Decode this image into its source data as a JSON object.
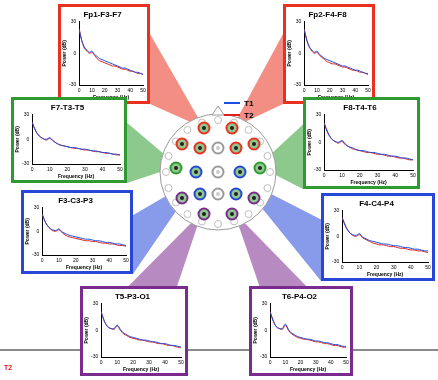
{
  "chart_data": [
    {
      "type": "line",
      "title": "Fp1-F3-F7",
      "x_label": "Frequency (Hz)",
      "y_label": "Power (dB)",
      "x": [
        0,
        2,
        4,
        6,
        8,
        10,
        12,
        14,
        16,
        18,
        20,
        22,
        24,
        26,
        28,
        30,
        32,
        34,
        36,
        38,
        40,
        42,
        44,
        46,
        48,
        50
      ],
      "xlim": [
        0,
        50
      ],
      "xticks": [
        0,
        10,
        20,
        30,
        40,
        50
      ],
      "ylim": [
        -30,
        30
      ],
      "yticks": [
        -30,
        0,
        30
      ],
      "grid": false,
      "color": "#e8311f",
      "series": [
        {
          "name": "T1",
          "color": "#1f4fe0",
          "values": [
            22,
            12,
            6,
            3,
            1,
            2,
            -1,
            -3,
            -5,
            -6,
            -7,
            -8,
            -9,
            -10,
            -11,
            -12,
            -13,
            -14,
            -14,
            -15,
            -16,
            -17,
            -18,
            -18,
            -19,
            -20
          ]
        },
        {
          "name": "T2",
          "color": "#e02020",
          "values": [
            23,
            12,
            5,
            2,
            0,
            1,
            -2,
            -5,
            -7,
            -8,
            -9,
            -10,
            -11,
            -12,
            -12,
            -13,
            -14,
            -15,
            -15,
            -16,
            -17,
            -17,
            -18,
            -19,
            -19,
            -20
          ]
        }
      ]
    },
    {
      "type": "line",
      "title": "Fp2-F4-F8",
      "x_label": "Frequency (Hz)",
      "y_label": "Power (dB)",
      "x": [
        0,
        2,
        4,
        6,
        8,
        10,
        12,
        14,
        16,
        18,
        20,
        22,
        24,
        26,
        28,
        30,
        32,
        34,
        36,
        38,
        40,
        42,
        44,
        46,
        48,
        50
      ],
      "xlim": [
        0,
        50
      ],
      "xticks": [
        0,
        10,
        20,
        30,
        40,
        50
      ],
      "ylim": [
        -30,
        30
      ],
      "yticks": [
        -30,
        0,
        30
      ],
      "grid": false,
      "color": "#e8311f",
      "series": [
        {
          "name": "T1",
          "color": "#1f4fe0",
          "values": [
            22,
            12,
            6,
            3,
            1,
            2,
            -1,
            -3,
            -5,
            -6,
            -7,
            -8,
            -9,
            -10,
            -11,
            -12,
            -12,
            -13,
            -14,
            -15,
            -16,
            -16,
            -17,
            -18,
            -19,
            -19
          ]
        },
        {
          "name": "T2",
          "color": "#e02020",
          "values": [
            23,
            13,
            6,
            2,
            0,
            1,
            -2,
            -4,
            -6,
            -8,
            -9,
            -10,
            -10,
            -11,
            -12,
            -13,
            -13,
            -14,
            -15,
            -16,
            -16,
            -17,
            -18,
            -18,
            -19,
            -20
          ]
        }
      ]
    },
    {
      "type": "line",
      "title": "F7-T3-T5",
      "x_label": "Frequency (Hz)",
      "y_label": "Power (dB)",
      "x": [
        0,
        2,
        4,
        6,
        8,
        10,
        12,
        14,
        16,
        18,
        20,
        22,
        24,
        26,
        28,
        30,
        32,
        34,
        36,
        38,
        40,
        42,
        44,
        46,
        48,
        50
      ],
      "xlim": [
        0,
        50
      ],
      "xticks": [
        0,
        10,
        20,
        30,
        40,
        50
      ],
      "ylim": [
        -30,
        30
      ],
      "yticks": [
        -30,
        0,
        30
      ],
      "grid": false,
      "color": "#2f9a2f",
      "series": [
        {
          "name": "T1",
          "color": "#1f4fe0",
          "values": [
            20,
            10,
            4,
            1,
            0,
            2,
            -2,
            -5,
            -7,
            -8,
            -9,
            -10,
            -10,
            -11,
            -12,
            -12,
            -13,
            -14,
            -14,
            -15,
            -16,
            -16,
            -17,
            -18,
            -18,
            -19
          ]
        },
        {
          "name": "T2",
          "color": "#e02020",
          "values": [
            21,
            10,
            4,
            1,
            -1,
            1,
            -2,
            -5,
            -7,
            -8,
            -9,
            -10,
            -11,
            -11,
            -12,
            -13,
            -13,
            -14,
            -15,
            -15,
            -16,
            -17,
            -17,
            -18,
            -19,
            -19
          ]
        }
      ]
    },
    {
      "type": "line",
      "title": "F8-T4-T6",
      "x_label": "Frequency (Hz)",
      "y_label": "Power (dB)",
      "x": [
        0,
        2,
        4,
        6,
        8,
        10,
        12,
        14,
        16,
        18,
        20,
        22,
        24,
        26,
        28,
        30,
        32,
        34,
        36,
        38,
        40,
        42,
        44,
        46,
        48,
        50
      ],
      "xlim": [
        0,
        50
      ],
      "xticks": [
        0,
        10,
        20,
        30,
        40,
        50
      ],
      "ylim": [
        -30,
        30
      ],
      "yticks": [
        -30,
        0,
        30
      ],
      "grid": false,
      "color": "#2f9a2f",
      "series": [
        {
          "name": "T1",
          "color": "#1f4fe0",
          "values": [
            20,
            10,
            4,
            1,
            0,
            2,
            -2,
            -5,
            -6,
            -8,
            -9,
            -9,
            -10,
            -11,
            -11,
            -12,
            -13,
            -13,
            -14,
            -15,
            -15,
            -16,
            -17,
            -17,
            -18,
            -19
          ]
        },
        {
          "name": "T2",
          "color": "#e02020",
          "values": [
            21,
            11,
            4,
            1,
            -1,
            1,
            -3,
            -5,
            -7,
            -8,
            -9,
            -10,
            -11,
            -11,
            -12,
            -13,
            -13,
            -14,
            -15,
            -15,
            -16,
            -17,
            -17,
            -18,
            -19,
            -19
          ]
        }
      ]
    },
    {
      "type": "line",
      "title": "F3-C3-P3",
      "x_label": "Frequency (Hz)",
      "y_label": "Power (dB)",
      "x": [
        0,
        2,
        4,
        6,
        8,
        10,
        12,
        14,
        16,
        18,
        20,
        22,
        24,
        26,
        28,
        30,
        32,
        34,
        36,
        38,
        40,
        42,
        44,
        46,
        48,
        50
      ],
      "xlim": [
        0,
        50
      ],
      "xticks": [
        0,
        10,
        20,
        30,
        40,
        50
      ],
      "ylim": [
        -30,
        30
      ],
      "yticks": [
        -30,
        0,
        30
      ],
      "grid": false,
      "color": "#2747d8",
      "series": [
        {
          "name": "T1",
          "color": "#1f4fe0",
          "values": [
            21,
            11,
            5,
            2,
            1,
            3,
            -1,
            -3,
            -5,
            -6,
            -7,
            -8,
            -9,
            -10,
            -10,
            -11,
            -12,
            -12,
            -13,
            -14,
            -14,
            -15,
            -16,
            -16,
            -17,
            -18
          ]
        },
        {
          "name": "T2",
          "color": "#e02020",
          "values": [
            22,
            11,
            5,
            1,
            0,
            2,
            -2,
            -5,
            -7,
            -8,
            -9,
            -10,
            -11,
            -12,
            -12,
            -13,
            -13,
            -14,
            -15,
            -15,
            -16,
            -16,
            -17,
            -18,
            -18,
            -19
          ]
        }
      ]
    },
    {
      "type": "line",
      "title": "F4-C4-P4",
      "x_label": "Frequency (Hz)",
      "y_label": "Power (dB)",
      "x": [
        0,
        2,
        4,
        6,
        8,
        10,
        12,
        14,
        16,
        18,
        20,
        22,
        24,
        26,
        28,
        30,
        32,
        34,
        36,
        38,
        40,
        42,
        44,
        46,
        48,
        50
      ],
      "xlim": [
        0,
        50
      ],
      "xticks": [
        0,
        10,
        20,
        30,
        40,
        50
      ],
      "ylim": [
        -30,
        30
      ],
      "yticks": [
        -30,
        0,
        30
      ],
      "grid": false,
      "color": "#2747d8",
      "series": [
        {
          "name": "T1",
          "color": "#1f4fe0",
          "values": [
            21,
            11,
            5,
            2,
            1,
            3,
            -1,
            -3,
            -5,
            -6,
            -7,
            -8,
            -9,
            -9,
            -10,
            -11,
            -11,
            -12,
            -13,
            -13,
            -14,
            -15,
            -15,
            -16,
            -17,
            -17
          ]
        },
        {
          "name": "T2",
          "color": "#e02020",
          "values": [
            22,
            12,
            5,
            1,
            0,
            2,
            -2,
            -4,
            -6,
            -8,
            -9,
            -10,
            -10,
            -11,
            -12,
            -12,
            -13,
            -14,
            -14,
            -15,
            -16,
            -16,
            -17,
            -17,
            -18,
            -19
          ]
        }
      ]
    },
    {
      "type": "line",
      "title": "T5-P3-O1",
      "x_label": "Frequency (Hz)",
      "y_label": "Power (dB)",
      "x": [
        0,
        2,
        4,
        6,
        8,
        10,
        12,
        14,
        16,
        18,
        20,
        22,
        24,
        26,
        28,
        30,
        32,
        34,
        36,
        38,
        40,
        42,
        44,
        46,
        48,
        50
      ],
      "xlim": [
        0,
        50
      ],
      "xticks": [
        0,
        10,
        20,
        30,
        40,
        50
      ],
      "ylim": [
        -30,
        30
      ],
      "yticks": [
        -30,
        0,
        30
      ],
      "grid": false,
      "color": "#7b2b8e",
      "series": [
        {
          "name": "T1",
          "color": "#1f4fe0",
          "values": [
            20,
            10,
            4,
            2,
            2,
            6,
            1,
            -3,
            -5,
            -7,
            -8,
            -9,
            -10,
            -11,
            -11,
            -12,
            -13,
            -13,
            -14,
            -15,
            -15,
            -16,
            -17,
            -17,
            -18,
            -19
          ]
        },
        {
          "name": "T2",
          "color": "#e02020",
          "values": [
            21,
            10,
            4,
            2,
            1,
            5,
            0,
            -4,
            -6,
            -8,
            -9,
            -10,
            -11,
            -11,
            -12,
            -13,
            -13,
            -14,
            -15,
            -15,
            -16,
            -17,
            -17,
            -18,
            -19,
            -19
          ]
        }
      ]
    },
    {
      "type": "line",
      "title": "T6-P4-O2",
      "x_label": "Frequency (Hz)",
      "y_label": "Power (dB)",
      "x": [
        0,
        2,
        4,
        6,
        8,
        10,
        12,
        14,
        16,
        18,
        20,
        22,
        24,
        26,
        28,
        30,
        32,
        34,
        36,
        38,
        40,
        42,
        44,
        46,
        48,
        50
      ],
      "xlim": [
        0,
        50
      ],
      "xticks": [
        0,
        10,
        20,
        30,
        40,
        50
      ],
      "ylim": [
        -30,
        30
      ],
      "yticks": [
        -30,
        0,
        30
      ],
      "grid": false,
      "color": "#7b2b8e",
      "series": [
        {
          "name": "T1",
          "color": "#1f4fe0",
          "values": [
            20,
            10,
            4,
            2,
            2,
            7,
            1,
            -3,
            -5,
            -7,
            -8,
            -9,
            -10,
            -10,
            -11,
            -12,
            -12,
            -13,
            -14,
            -14,
            -15,
            -16,
            -16,
            -17,
            -18,
            -18
          ]
        },
        {
          "name": "T2",
          "color": "#e02020",
          "values": [
            21,
            11,
            4,
            2,
            1,
            6,
            0,
            -4,
            -6,
            -8,
            -9,
            -10,
            -10,
            -11,
            -12,
            -13,
            -13,
            -14,
            -15,
            -15,
            -16,
            -17,
            -17,
            -18,
            -19,
            -19
          ]
        }
      ]
    }
  ],
  "footer": "T2"
}
